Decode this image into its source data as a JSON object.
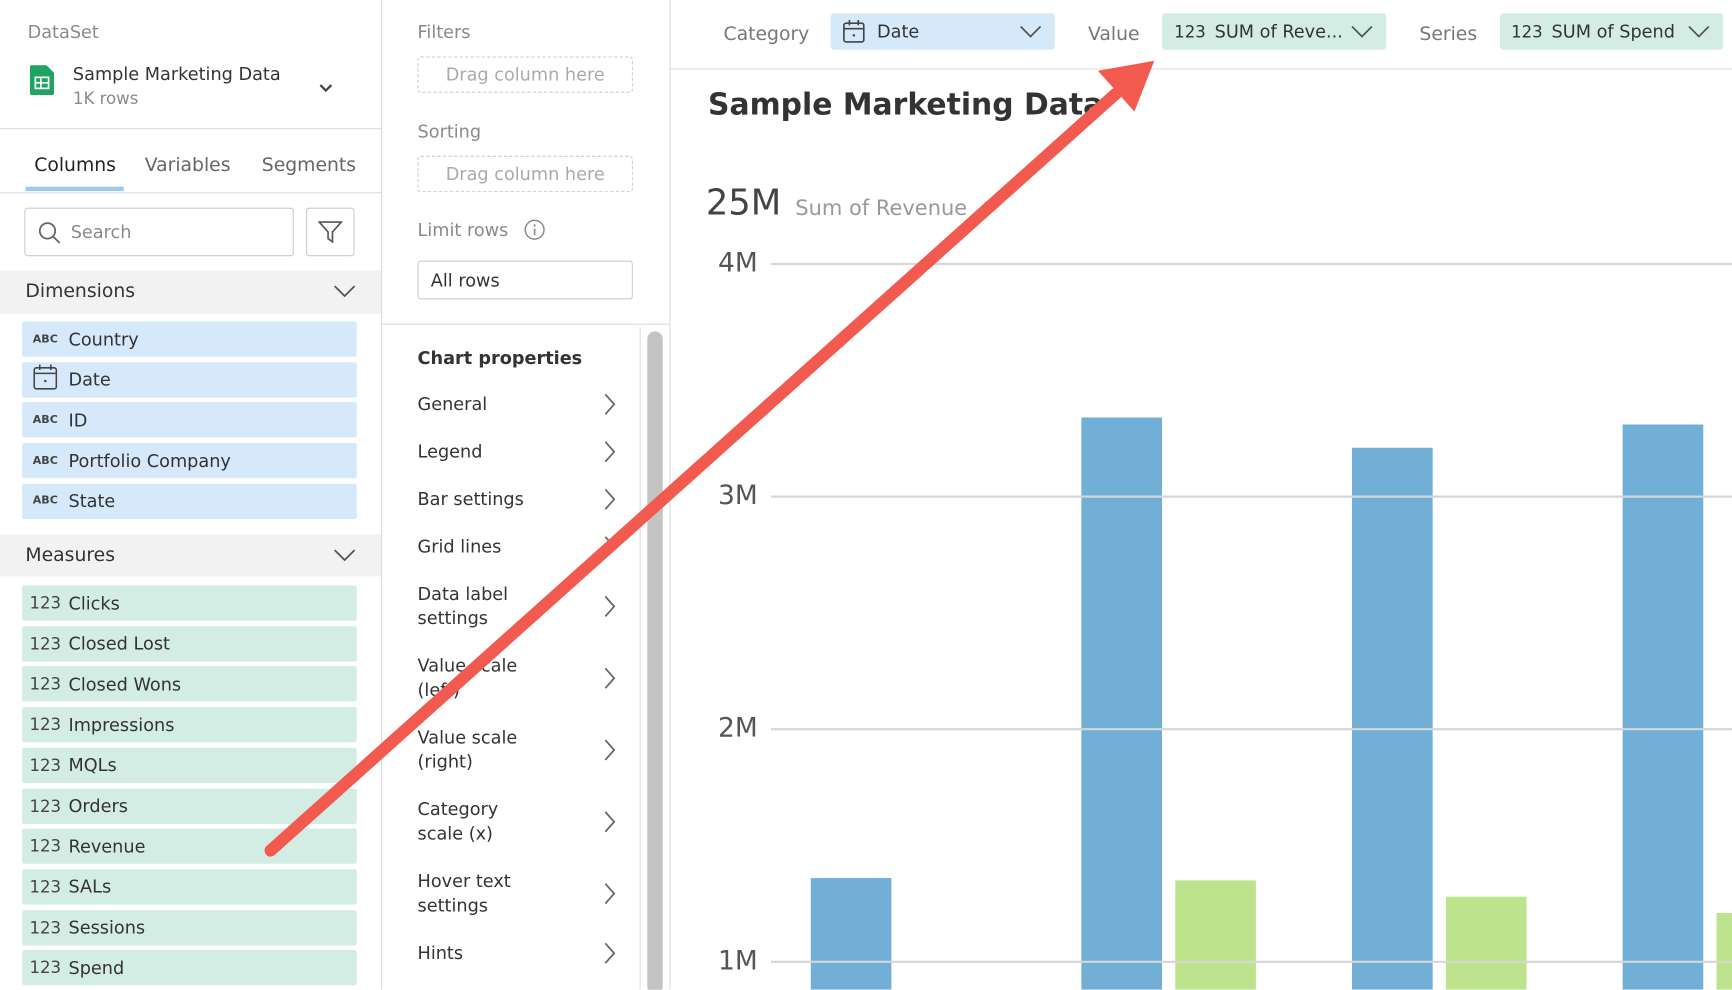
{
  "sidebar": {
    "dataset_label": "DataSet",
    "dataset_name": "Sample Marketing Data",
    "dataset_rows": "1K rows",
    "tabs": [
      "Columns",
      "Variables",
      "Segments"
    ],
    "search_placeholder": "Search",
    "dimensions_label": "Dimensions",
    "dimension_icon": "ABC",
    "dimensions": [
      "Country",
      "Date",
      "ID",
      "Portfolio Company",
      "State"
    ],
    "measures_label": "Measures",
    "measure_icon": "123",
    "measures": [
      "Clicks",
      "Closed Lost",
      "Closed Wons",
      "Impressions",
      "MQLs",
      "Orders",
      "Revenue",
      "SALs",
      "Sessions",
      "Spend"
    ]
  },
  "config": {
    "filters_label": "Filters",
    "drag_placeholder": "Drag column here",
    "sorting_label": "Sorting",
    "limit_label": "Limit rows",
    "limit_value": "All rows",
    "properties_title": "Chart properties",
    "properties": [
      "General",
      "Legend",
      "Bar settings",
      "Grid lines",
      "Data label settings",
      "Value scale (left)",
      "Value scale (right)",
      "Category scale (x)",
      "Hover text settings",
      "Hints"
    ]
  },
  "toolbar": {
    "category_label": "Category",
    "category_value": "Date",
    "value_label": "Value",
    "value_value": "SUM of Reve...",
    "series_label": "Series",
    "series_value": "SUM of Spend"
  },
  "chart_data": {
    "type": "bar",
    "title": "Sample Marketing Data",
    "kpi_value": "25M",
    "kpi_label": "Sum of Revenue",
    "categories": [
      null,
      null,
      null,
      null
    ],
    "series": [
      {
        "name": "Revenue",
        "color": "#72afd6",
        "values": [
          1360000,
          3340000,
          3210000,
          3310000
        ]
      },
      {
        "name": "Spend",
        "color": "#bde38d",
        "values": [
          null,
          1350000,
          1280000,
          1210000
        ]
      }
    ],
    "ylim": [
      880000,
      4000000
    ],
    "yticks": [
      {
        "value": 1000000,
        "label": "1M"
      },
      {
        "value": 2000000,
        "label": "2M"
      },
      {
        "value": 3000000,
        "label": "3M"
      },
      {
        "value": 4000000,
        "label": "4M"
      }
    ],
    "grid": true
  }
}
